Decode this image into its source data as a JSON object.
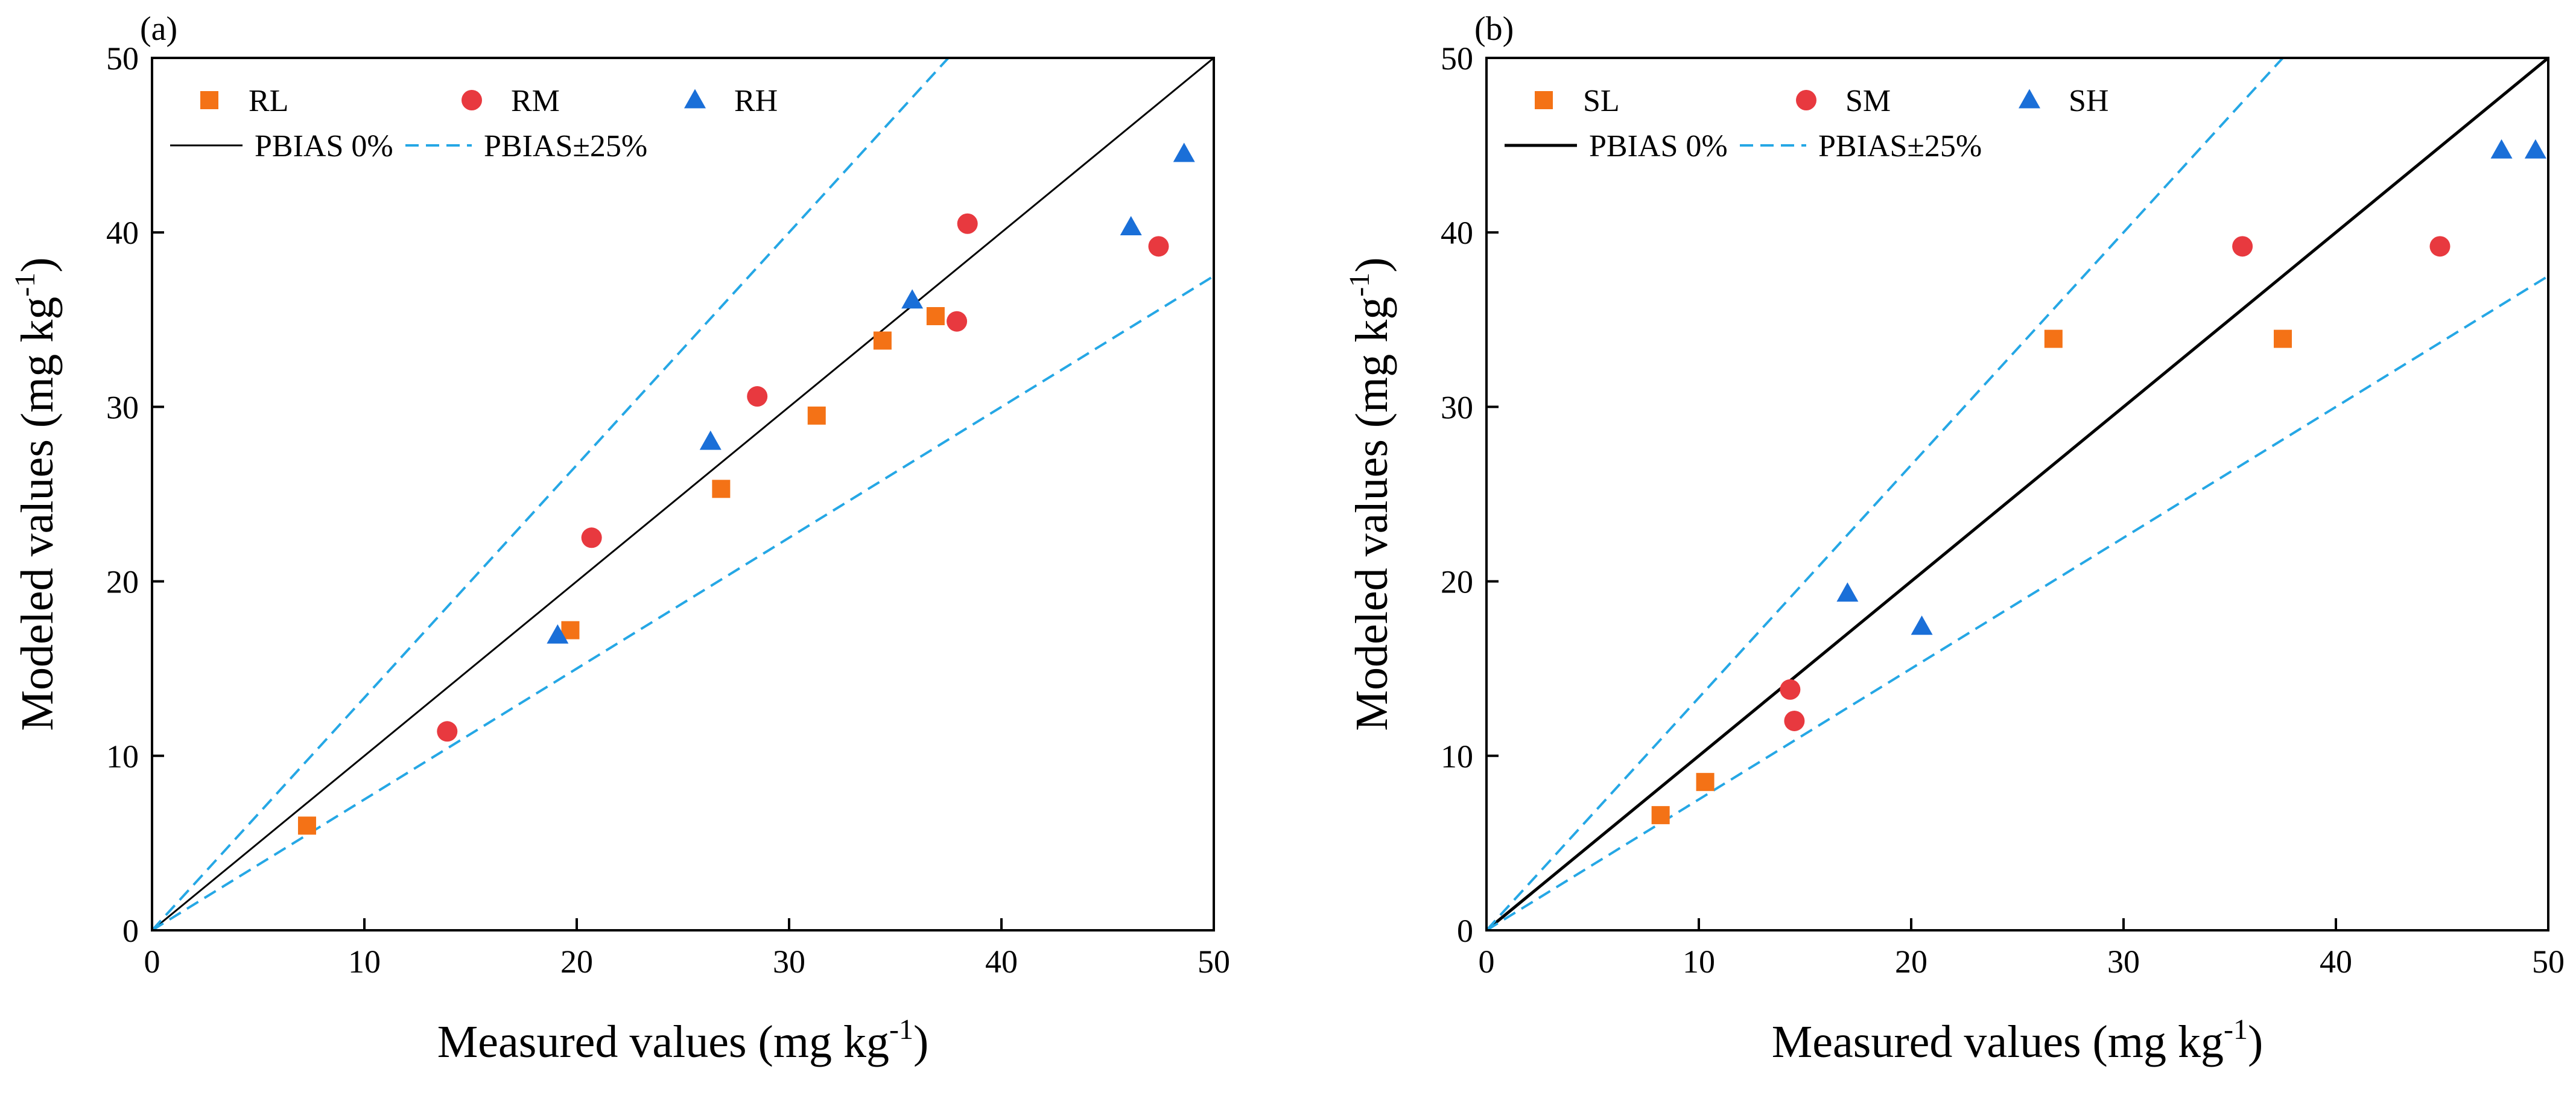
{
  "figure": {
    "background": "#ffffff"
  },
  "chart_data": [
    {
      "type": "scatter",
      "panel_label": "(a)",
      "xlabel_main": "Measured values (mg kg",
      "xlabel_sup": "-1",
      "xlabel_end": ")",
      "ylabel_main": "Modeled values (mg kg",
      "ylabel_sup": "-1",
      "ylabel_end": ")",
      "xlim": [
        0,
        50
      ],
      "ylim": [
        0,
        50
      ],
      "xticks": [
        0,
        10,
        20,
        30,
        40,
        50
      ],
      "yticks": [
        0,
        10,
        20,
        30,
        40,
        50
      ],
      "grid": false,
      "legend_position": "top-left",
      "series": [
        {
          "name": "RL",
          "marker": "square",
          "color": "#f47216",
          "points": [
            [
              7.3,
              6.0
            ],
            [
              19.7,
              17.2
            ],
            [
              26.8,
              25.3
            ],
            [
              31.3,
              29.5
            ],
            [
              34.4,
              33.8
            ],
            [
              36.9,
              35.2
            ]
          ]
        },
        {
          "name": "RM",
          "marker": "circle",
          "color": "#e8393f",
          "points": [
            [
              13.9,
              11.4
            ],
            [
              20.7,
              22.5
            ],
            [
              28.5,
              30.6
            ],
            [
              37.9,
              34.9
            ],
            [
              38.4,
              40.5
            ],
            [
              47.4,
              39.2
            ]
          ]
        },
        {
          "name": "RH",
          "marker": "triangle",
          "color": "#1a6fd8",
          "points": [
            [
              19.1,
              16.9
            ],
            [
              26.3,
              28.0
            ],
            [
              35.8,
              36.1
            ],
            [
              46.1,
              40.3
            ],
            [
              48.6,
              44.5
            ]
          ]
        }
      ],
      "reference_lines": [
        {
          "name": "PBIAS 0%",
          "slope": 1.0,
          "style": "solid",
          "color": "#000000"
        },
        {
          "name": "PBIAS±25%",
          "slope": 1.3333,
          "style": "dashed",
          "color": "#25a7e5"
        },
        {
          "name": "",
          "slope": 0.75,
          "style": "dashed",
          "color": "#25a7e5"
        }
      ]
    },
    {
      "type": "scatter",
      "panel_label": "(b)",
      "xlabel_main": "Measured values (mg kg",
      "xlabel_sup": "-1",
      "xlabel_end": ")",
      "ylabel_main": "Modeled values (mg kg",
      "ylabel_sup": "-1",
      "ylabel_end": ")",
      "xlim": [
        0,
        50
      ],
      "ylim": [
        0,
        50
      ],
      "xticks": [
        0,
        10,
        20,
        30,
        40,
        50
      ],
      "yticks": [
        0,
        10,
        20,
        30,
        40,
        50
      ],
      "grid": false,
      "legend_position": "top-left",
      "series": [
        {
          "name": "SL",
          "marker": "square",
          "color": "#f47216",
          "points": [
            [
              8.2,
              6.6
            ],
            [
              10.3,
              8.5
            ],
            [
              26.7,
              33.9
            ],
            [
              37.5,
              33.9
            ]
          ]
        },
        {
          "name": "SM",
          "marker": "circle",
          "color": "#e8393f",
          "points": [
            [
              14.3,
              13.8
            ],
            [
              14.5,
              12.0
            ],
            [
              35.6,
              39.2
            ],
            [
              44.9,
              39.2
            ]
          ]
        },
        {
          "name": "SH",
          "marker": "triangle",
          "color": "#1a6fd8",
          "points": [
            [
              17.0,
              19.3
            ],
            [
              20.5,
              17.4
            ],
            [
              47.8,
              44.7
            ],
            [
              49.4,
              44.7
            ]
          ]
        }
      ],
      "reference_lines": [
        {
          "name": "PBIAS 0%",
          "slope": 1.0,
          "style": "solid",
          "color": "#000000"
        },
        {
          "name": "PBIAS±25%",
          "slope": 1.3333,
          "style": "dashed",
          "color": "#25a7e5"
        },
        {
          "name": "",
          "slope": 0.75,
          "style": "dashed",
          "color": "#25a7e5"
        }
      ]
    }
  ]
}
